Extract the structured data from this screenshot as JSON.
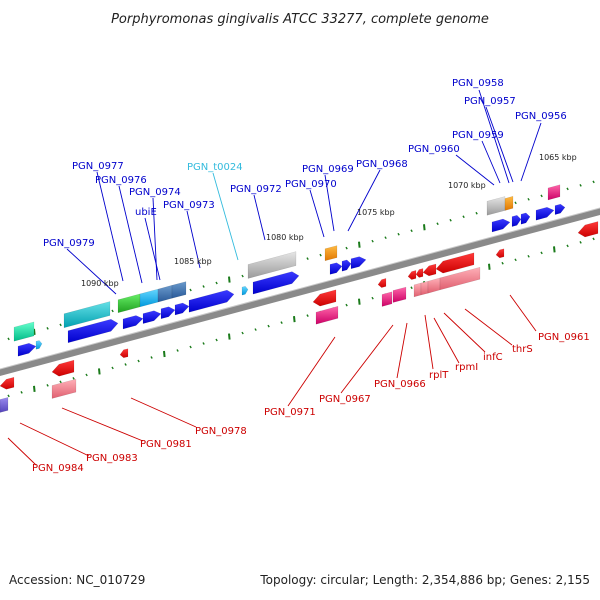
{
  "title": "Porphyromonas gingivalis ATCC 33277, complete genome",
  "footer": {
    "accession": "Accession: NC_010729",
    "topology": "Topology: circular; Length: 2,354,886 bp; Genes: 2,155"
  },
  "colors": {
    "top_label": "#0000cc",
    "bottom_label": "#cc0000",
    "trna_label": "#33bbdd",
    "backbone": "#8a8a8a",
    "tick": "#1a7a1a"
  },
  "scale_labels": [
    "1065 kbp",
    "1070 kbp",
    "1075 kbp",
    "1080 kbp",
    "1085 kbp",
    "1090 kbp"
  ],
  "top_labels": [
    {
      "text": "PGN_0958",
      "kind": "gene"
    },
    {
      "text": "PGN_0957",
      "kind": "gene"
    },
    {
      "text": "PGN_0959",
      "kind": "gene"
    },
    {
      "text": "PGN_0956",
      "kind": "gene"
    },
    {
      "text": "PGN_0960",
      "kind": "gene"
    },
    {
      "text": "PGN_0968",
      "kind": "gene"
    },
    {
      "text": "PGN_0969",
      "kind": "gene"
    },
    {
      "text": "PGN_0970",
      "kind": "gene"
    },
    {
      "text": "PGN_t0024",
      "kind": "trna"
    },
    {
      "text": "PGN_0972",
      "kind": "gene"
    },
    {
      "text": "PGN_0977",
      "kind": "gene"
    },
    {
      "text": "PGN_0976",
      "kind": "gene"
    },
    {
      "text": "PGN_0974",
      "kind": "gene"
    },
    {
      "text": "ubiE",
      "kind": "gene"
    },
    {
      "text": "PGN_0973",
      "kind": "gene"
    },
    {
      "text": "PGN_0979",
      "kind": "gene"
    }
  ],
  "bottom_labels": [
    {
      "text": "PGN_0961"
    },
    {
      "text": "thrS"
    },
    {
      "text": "infC"
    },
    {
      "text": "rpmI"
    },
    {
      "text": "rplT"
    },
    {
      "text": "PGN_0966"
    },
    {
      "text": "PGN_0967"
    },
    {
      "text": "PGN_0971"
    },
    {
      "text": "PGN_0978"
    },
    {
      "text": "PGN_0981"
    },
    {
      "text": "PGN_0983"
    },
    {
      "text": "PGN_0984"
    }
  ]
}
